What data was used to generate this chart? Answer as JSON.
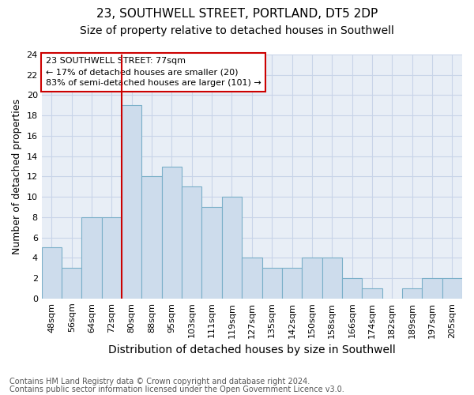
{
  "title1": "23, SOUTHWELL STREET, PORTLAND, DT5 2DP",
  "title2": "Size of property relative to detached houses in Southwell",
  "xlabel": "Distribution of detached houses by size in Southwell",
  "ylabel": "Number of detached properties",
  "categories": [
    "48sqm",
    "56sqm",
    "64sqm",
    "72sqm",
    "80sqm",
    "88sqm",
    "95sqm",
    "103sqm",
    "111sqm",
    "119sqm",
    "127sqm",
    "135sqm",
    "142sqm",
    "150sqm",
    "158sqm",
    "166sqm",
    "174sqm",
    "182sqm",
    "189sqm",
    "197sqm",
    "205sqm"
  ],
  "values": [
    5,
    3,
    8,
    8,
    19,
    12,
    13,
    11,
    9,
    10,
    4,
    3,
    3,
    4,
    4,
    2,
    1,
    0,
    1,
    2,
    2
  ],
  "bar_color": "#cddcec",
  "bar_edgecolor": "#7aafc8",
  "vline_color": "#cc0000",
  "annotation_box_text": "23 SOUTHWELL STREET: 77sqm\n← 17% of detached houses are smaller (20)\n83% of semi-detached houses are larger (101) →",
  "annotation_box_color": "#cc0000",
  "ylim": [
    0,
    24
  ],
  "yticks": [
    0,
    2,
    4,
    6,
    8,
    10,
    12,
    14,
    16,
    18,
    20,
    22,
    24
  ],
  "grid_color": "#c8d4e8",
  "background_color": "#e8eef6",
  "footer1": "Contains HM Land Registry data © Crown copyright and database right 2024.",
  "footer2": "Contains public sector information licensed under the Open Government Licence v3.0.",
  "title1_fontsize": 11,
  "title2_fontsize": 10,
  "xlabel_fontsize": 10,
  "ylabel_fontsize": 9,
  "tick_fontsize": 8,
  "annotation_fontsize": 8,
  "footer_fontsize": 7
}
